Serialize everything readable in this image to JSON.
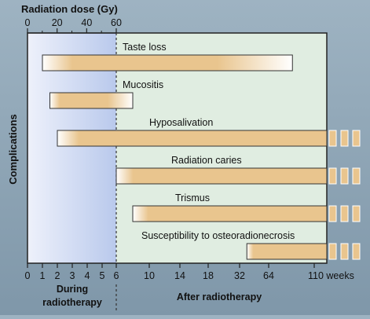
{
  "chart_data": {
    "type": "bar",
    "subtype": "timeline",
    "top_axis": {
      "title": "Radiation dose (Gy)",
      "ticks": [
        "0",
        "20",
        "40",
        "60"
      ],
      "values": [
        0,
        20,
        40,
        60
      ]
    },
    "y_axis_label": "Complications",
    "bottom_axis": {
      "ticks": [
        "0",
        "1",
        "2",
        "3",
        "4",
        "5",
        "6",
        "10",
        "14",
        "18",
        "32",
        "64",
        "110 weeks"
      ],
      "during_label": [
        "During",
        "radiotherapy"
      ],
      "after_label": "After radiotherapy"
    },
    "series": [
      {
        "name": "Taste loss",
        "start_week": 1,
        "end_week": 88,
        "ongoing": false
      },
      {
        "name": "Mucositis",
        "start_week": 1.5,
        "end_week": 8,
        "ongoing": false
      },
      {
        "name": "Hyposalivation",
        "start_week": 2,
        "end_week": null,
        "ongoing": true
      },
      {
        "name": "Radiation caries",
        "start_week": 6,
        "end_week": null,
        "ongoing": true
      },
      {
        "name": "Trismus",
        "start_week": 8,
        "end_week": null,
        "ongoing": true
      },
      {
        "name": "Susceptibility to osteoradionecrosis",
        "start_week": 40,
        "end_week": null,
        "ongoing": true
      }
    ],
    "colors": {
      "during_region": "#c7d3ef",
      "after_region": "#e0ede1",
      "bar_fill": "#e9c58e",
      "bar_edge": "#ffffff",
      "outline": "#222222"
    }
  }
}
